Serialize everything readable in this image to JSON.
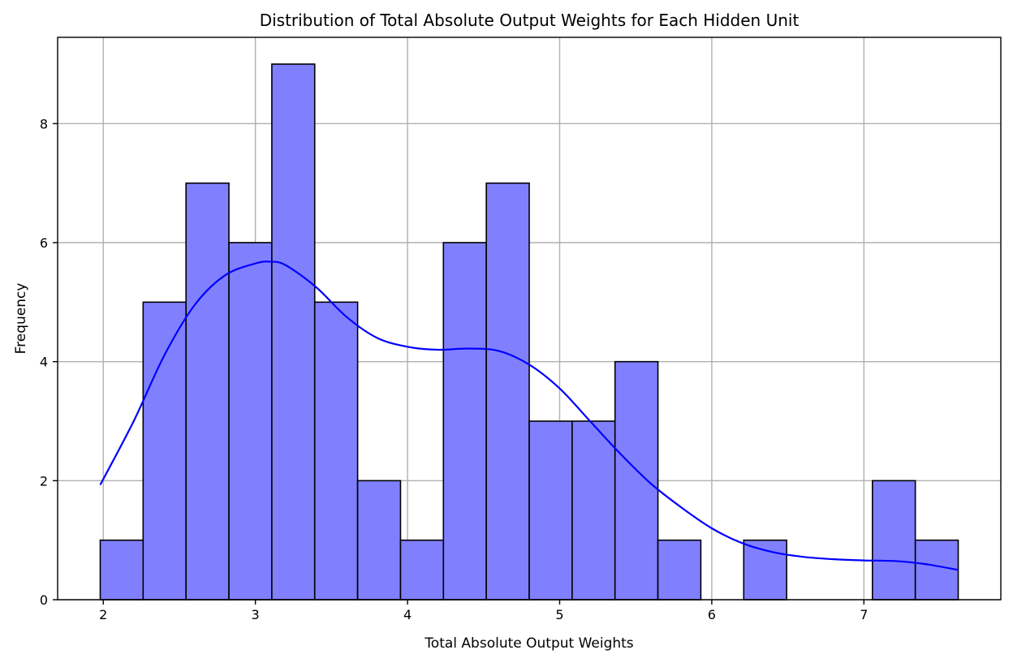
{
  "chart_data": {
    "type": "bar",
    "title": "Distribution of Total Absolute Output Weights for Each Hidden Unit",
    "xlabel": "Total Absolute Output Weights",
    "ylabel": "Frequency",
    "xlim": [
      1.7,
      7.9
    ],
    "ylim": [
      0,
      9.45
    ],
    "xticks": [
      2,
      3,
      4,
      5,
      6,
      7
    ],
    "yticks": [
      0,
      2,
      4,
      6,
      8
    ],
    "grid": true,
    "bin_edges": [
      1.98,
      2.262,
      2.544,
      2.826,
      3.108,
      3.39,
      3.672,
      3.954,
      4.236,
      4.518,
      4.8,
      5.082,
      5.364,
      5.646,
      5.928,
      6.21,
      6.492,
      6.774,
      7.056,
      7.338,
      7.62
    ],
    "counts": [
      1,
      5,
      7,
      6,
      9,
      5,
      2,
      1,
      6,
      7,
      3,
      3,
      4,
      1,
      0,
      1,
      0,
      0,
      2,
      1
    ],
    "bar_color": "#8080ff",
    "kde_color": "#0000ff",
    "kde": {
      "x": [
        1.98,
        2.2,
        2.4,
        2.6,
        2.8,
        3.0,
        3.1,
        3.2,
        3.4,
        3.6,
        3.8,
        4.0,
        4.2,
        4.4,
        4.6,
        4.8,
        5.0,
        5.2,
        5.4,
        5.6,
        5.8,
        6.0,
        6.2,
        6.4,
        6.6,
        6.8,
        7.0,
        7.2,
        7.4,
        7.62
      ],
      "y": [
        1.93,
        3.0,
        4.1,
        4.95,
        5.45,
        5.65,
        5.68,
        5.62,
        5.25,
        4.75,
        4.4,
        4.25,
        4.2,
        4.22,
        4.18,
        3.95,
        3.55,
        3.0,
        2.45,
        1.95,
        1.55,
        1.2,
        0.95,
        0.8,
        0.72,
        0.68,
        0.66,
        0.65,
        0.6,
        0.5
      ]
    }
  }
}
